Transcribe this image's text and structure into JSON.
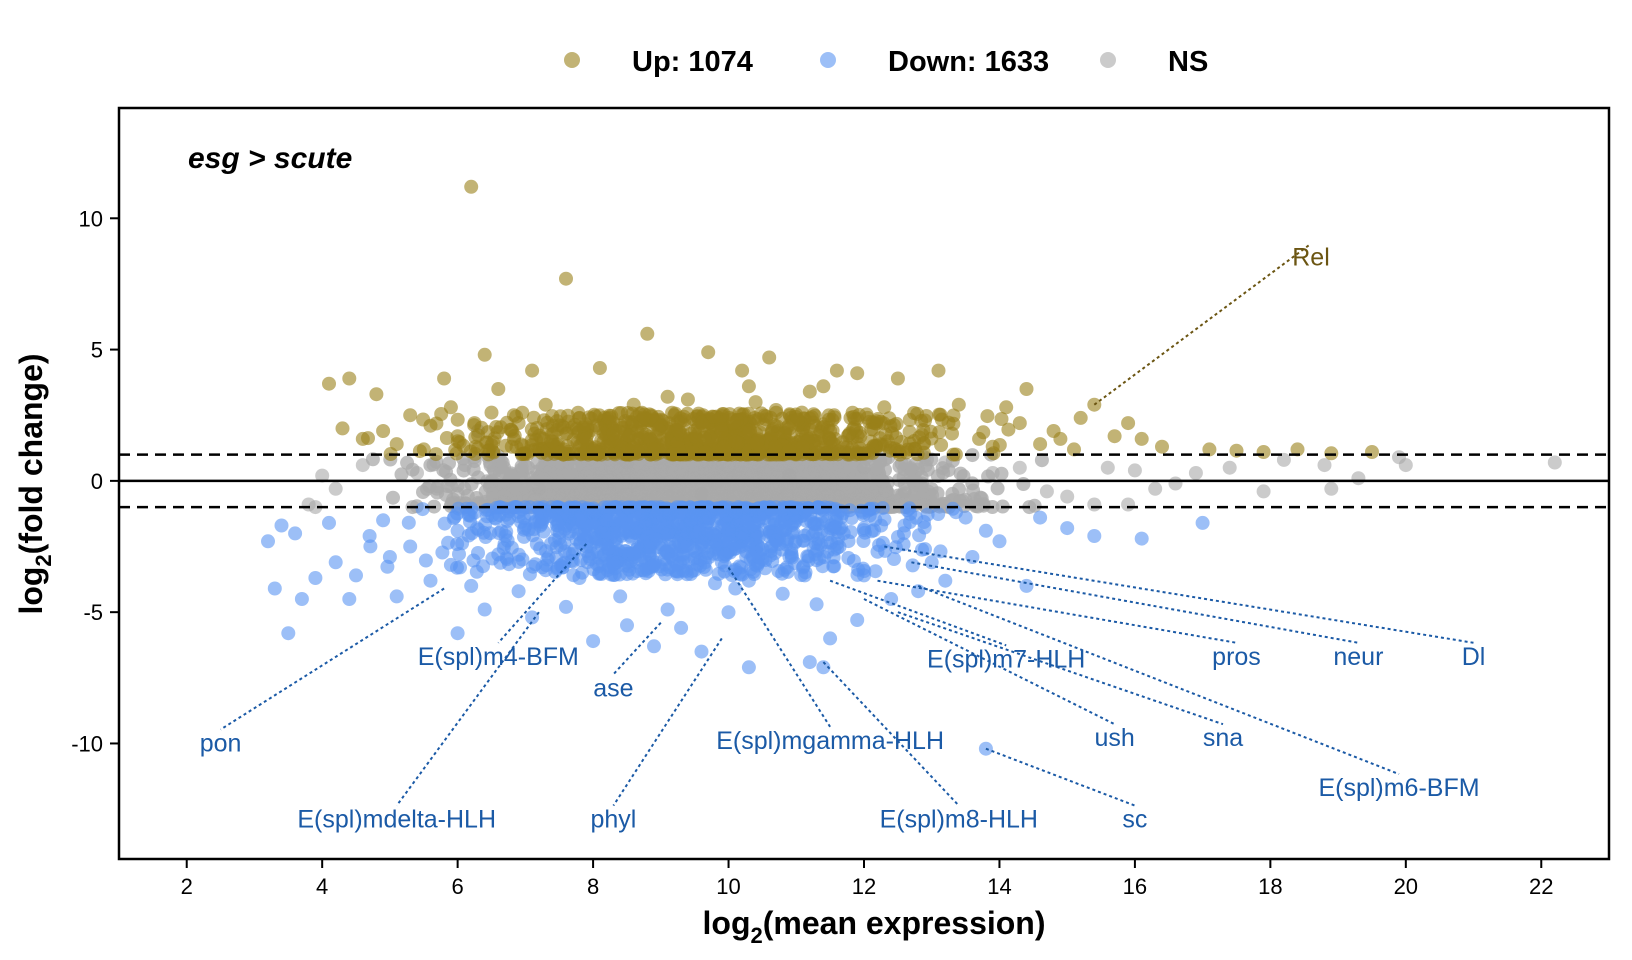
{
  "chart_data": {
    "type": "scatter",
    "panel_label": "esg > scute",
    "xlabel": {
      "main": "log",
      "sub": "2",
      "rest": "(mean expression)"
    },
    "ylabel": {
      "main": "log",
      "sub": "2",
      "rest": "(fold change)"
    },
    "xlim": [
      1,
      23
    ],
    "ylim": [
      -14.4,
      14.2
    ],
    "xticks": [
      2,
      4,
      6,
      8,
      10,
      12,
      14,
      16,
      18,
      20,
      22
    ],
    "yticks": [
      -10,
      -5,
      0,
      5,
      10
    ],
    "hlines": {
      "solid": [
        0
      ],
      "dashed": [
        1,
        -1
      ]
    },
    "colors": {
      "up": "#9a8019",
      "down": "#5a94f2",
      "ns": "#a9a9a9",
      "up_label": "#6b5512",
      "down_label": "#1b5aa6"
    },
    "legend": {
      "position": "top",
      "items": [
        {
          "key": "up",
          "label": "Up: 1074"
        },
        {
          "key": "down",
          "label": "Down: 1633"
        },
        {
          "key": "ns",
          "label": "NS"
        }
      ]
    },
    "series": [
      {
        "name": "Up: 1074",
        "key": "up",
        "points": [
          [
            6.2,
            11.2
          ],
          [
            7.6,
            7.7
          ],
          [
            8.8,
            5.6
          ],
          [
            6.4,
            4.8
          ],
          [
            9.7,
            4.9
          ],
          [
            10.6,
            4.7
          ],
          [
            7.1,
            4.2
          ],
          [
            10.2,
            4.2
          ],
          [
            11.6,
            4.2
          ],
          [
            11.9,
            4.1
          ],
          [
            8.1,
            4.3
          ],
          [
            13.1,
            4.2
          ],
          [
            4.1,
            3.7
          ],
          [
            4.4,
            3.9
          ],
          [
            5.8,
            3.9
          ],
          [
            12.5,
            3.9
          ],
          [
            14.4,
            3.5
          ],
          [
            15.4,
            2.9
          ],
          [
            4.8,
            3.3
          ],
          [
            6.6,
            3.5
          ],
          [
            7.3,
            2.9
          ],
          [
            9.1,
            3.2
          ],
          [
            10.3,
            3.6
          ],
          [
            11.2,
            3.4
          ],
          [
            13.4,
            2.9
          ],
          [
            14.1,
            2.8
          ],
          [
            15.2,
            2.4
          ],
          [
            15.9,
            2.2
          ],
          [
            16.1,
            1.6
          ],
          [
            17.1,
            1.2
          ],
          [
            17.9,
            1.1
          ],
          [
            18.4,
            1.2
          ],
          [
            19.5,
            1.1
          ],
          [
            16.4,
            1.3
          ],
          [
            15.7,
            1.7
          ],
          [
            14.8,
            1.9
          ],
          [
            12.3,
            2.8
          ],
          [
            11.4,
            3.6
          ],
          [
            8.6,
            2.9
          ],
          [
            9.4,
            3.1
          ],
          [
            5.3,
            2.5
          ],
          [
            5.9,
            2.8
          ],
          [
            6.9,
            2.2
          ],
          [
            7.8,
            2.4
          ],
          [
            4.3,
            2.0
          ],
          [
            4.6,
            1.6
          ],
          [
            12.9,
            2.3
          ],
          [
            13.7,
            1.6
          ],
          [
            10.9,
            2.0
          ],
          [
            9.9,
            1.9
          ],
          [
            8.3,
            1.8
          ],
          [
            7.4,
            1.5
          ],
          [
            5.1,
            1.4
          ],
          [
            5.6,
            2.1
          ],
          [
            11.8,
            2.4
          ],
          [
            13.9,
            1.3
          ],
          [
            14.6,
            1.4
          ],
          [
            15.1,
            1.2
          ],
          [
            17.5,
            1.15
          ],
          [
            18.9,
            1.05
          ],
          [
            9.2,
            2.5
          ],
          [
            10.7,
            2.7
          ],
          [
            6.0,
            1.7
          ],
          [
            12.1,
            1.5
          ],
          [
            4.9,
            1.9
          ],
          [
            6.8,
            1.3
          ],
          [
            8.9,
            1.2
          ],
          [
            11.1,
            1.3
          ],
          [
            13.3,
            1.8
          ],
          [
            14.9,
            1.6
          ],
          [
            10.1,
            1.5
          ],
          [
            7.9,
            1.6
          ],
          [
            5.5,
            1.2
          ],
          [
            12.7,
            1.2
          ],
          [
            9.6,
            2.2
          ],
          [
            6.5,
            2.6
          ],
          [
            11.5,
            1.9
          ],
          [
            14.3,
            2.2
          ],
          [
            8.4,
            2.1
          ],
          [
            10.4,
            3.0
          ]
        ]
      },
      {
        "name": "Down: 1633",
        "key": "down",
        "points": [
          [
            13.8,
            -10.2
          ],
          [
            11.4,
            -7.1
          ],
          [
            11.2,
            -6.9
          ],
          [
            10.3,
            -7.1
          ],
          [
            9.6,
            -6.5
          ],
          [
            8.0,
            -6.1
          ],
          [
            6.0,
            -5.8
          ],
          [
            3.5,
            -5.8
          ],
          [
            3.3,
            -4.1
          ],
          [
            3.7,
            -4.5
          ],
          [
            4.4,
            -4.5
          ],
          [
            3.9,
            -3.7
          ],
          [
            3.2,
            -2.3
          ],
          [
            3.4,
            -1.7
          ],
          [
            3.6,
            -2.0
          ],
          [
            4.2,
            -3.1
          ],
          [
            5.1,
            -4.4
          ],
          [
            6.2,
            -4.0
          ],
          [
            7.1,
            -5.2
          ],
          [
            7.6,
            -4.8
          ],
          [
            8.5,
            -5.5
          ],
          [
            8.9,
            -6.3
          ],
          [
            9.3,
            -5.6
          ],
          [
            10.0,
            -5.0
          ],
          [
            10.8,
            -4.3
          ],
          [
            11.5,
            -6.0
          ],
          [
            11.9,
            -5.3
          ],
          [
            12.4,
            -4.5
          ],
          [
            12.8,
            -4.2
          ],
          [
            13.2,
            -3.8
          ],
          [
            13.6,
            -2.9
          ],
          [
            14.0,
            -2.3
          ],
          [
            14.4,
            -4.0
          ],
          [
            15.4,
            -2.1
          ],
          [
            16.1,
            -2.2
          ],
          [
            17.0,
            -1.6
          ],
          [
            15.0,
            -1.8
          ],
          [
            13.0,
            -3.1
          ],
          [
            12.2,
            -2.7
          ],
          [
            11.1,
            -3.3
          ],
          [
            10.5,
            -2.6
          ],
          [
            9.8,
            -3.9
          ],
          [
            8.7,
            -3.0
          ],
          [
            7.9,
            -2.5
          ],
          [
            7.3,
            -3.4
          ],
          [
            6.6,
            -2.8
          ],
          [
            5.9,
            -3.2
          ],
          [
            5.3,
            -2.5
          ],
          [
            4.7,
            -2.1
          ],
          [
            4.1,
            -1.6
          ],
          [
            4.9,
            -1.5
          ],
          [
            6.0,
            -1.9
          ],
          [
            7.0,
            -1.7
          ],
          [
            8.2,
            -1.5
          ],
          [
            9.4,
            -2.0
          ],
          [
            10.6,
            -1.6
          ],
          [
            11.7,
            -2.0
          ],
          [
            12.6,
            -1.7
          ],
          [
            13.5,
            -1.4
          ],
          [
            14.6,
            -1.4
          ],
          [
            5.6,
            -3.8
          ],
          [
            6.9,
            -4.2
          ],
          [
            8.4,
            -4.4
          ],
          [
            9.1,
            -4.9
          ],
          [
            10.1,
            -4.1
          ],
          [
            11.3,
            -4.7
          ],
          [
            12.0,
            -3.6
          ],
          [
            12.9,
            -2.6
          ],
          [
            13.8,
            -1.9
          ],
          [
            4.5,
            -3.6
          ],
          [
            5.0,
            -2.9
          ],
          [
            7.5,
            -2.2
          ],
          [
            8.8,
            -2.5
          ],
          [
            9.9,
            -3.1
          ],
          [
            10.9,
            -2.9
          ],
          [
            11.6,
            -2.4
          ],
          [
            6.4,
            -4.9
          ],
          [
            7.8,
            -3.7
          ],
          [
            9.5,
            -3.4
          ],
          [
            10.3,
            -3.8
          ]
        ]
      },
      {
        "name": "NS",
        "key": "ns",
        "points": [
          [
            22.2,
            0.7
          ],
          [
            20.0,
            0.6
          ],
          [
            19.9,
            0.9
          ],
          [
            18.8,
            0.6
          ],
          [
            18.2,
            0.8
          ],
          [
            17.4,
            0.5
          ],
          [
            16.9,
            0.3
          ],
          [
            16.6,
            -0.1
          ],
          [
            16.3,
            -0.3
          ],
          [
            17.9,
            -0.4
          ],
          [
            18.9,
            -0.3
          ],
          [
            19.3,
            0.1
          ],
          [
            15.9,
            -0.9
          ],
          [
            15.4,
            -0.9
          ],
          [
            15.0,
            -0.6
          ],
          [
            14.7,
            -0.4
          ],
          [
            14.3,
            0.5
          ],
          [
            13.9,
            0.3
          ],
          [
            15.6,
            0.5
          ],
          [
            16.0,
            0.4
          ],
          [
            4.0,
            0.2
          ],
          [
            4.2,
            -0.3
          ],
          [
            3.9,
            -1.0
          ],
          [
            3.8,
            -0.9
          ],
          [
            4.6,
            0.6
          ],
          [
            6.3,
            1.9
          ],
          [
            6.0,
            -0.5
          ],
          [
            8.5,
            0.7
          ],
          [
            10.9,
            0.2
          ],
          [
            12.6,
            -0.4
          ],
          [
            13.2,
            0.7
          ],
          [
            12.0,
            0.5
          ],
          [
            9.6,
            -0.5
          ],
          [
            7.2,
            -0.3
          ],
          [
            5.4,
            0.3
          ]
        ]
      }
    ],
    "dense_bands": [
      {
        "key": "up",
        "x_from": 4.0,
        "x_to": 15.2,
        "y_from": 1.0,
        "y_to": 2.6,
        "count": 900
      },
      {
        "key": "down",
        "x_from": 3.9,
        "x_to": 14.6,
        "y_from": -1.0,
        "y_to": -3.6,
        "count": 1100
      },
      {
        "key": "ns",
        "x_from": 3.9,
        "x_to": 15.5,
        "y_from": -1.0,
        "y_to": 1.0,
        "count": 2200
      }
    ],
    "annotations": [
      {
        "label": "Rel",
        "group": "up",
        "point": [
          15.4,
          2.9
        ],
        "text_pos": [
          18.6,
          8.5
        ],
        "anchor": "middle"
      },
      {
        "label": "pon",
        "group": "down",
        "point": [
          5.8,
          -4.1
        ],
        "text_pos": [
          2.5,
          -10.0
        ],
        "anchor": "middle"
      },
      {
        "label": "E(spl)m4-BFM",
        "group": "down",
        "point": [
          7.9,
          -2.4
        ],
        "text_pos": [
          6.6,
          -6.7
        ],
        "anchor": "middle"
      },
      {
        "label": "ase",
        "group": "down",
        "point": [
          9.0,
          -5.4
        ],
        "text_pos": [
          8.3,
          -7.9
        ],
        "anchor": "middle"
      },
      {
        "label": "E(spl)mdelta-HLH",
        "group": "down",
        "point": [
          7.2,
          -5.0
        ],
        "text_pos": [
          5.1,
          -12.9
        ],
        "anchor": "middle"
      },
      {
        "label": "phyl",
        "group": "down",
        "point": [
          9.9,
          -6.0
        ],
        "text_pos": [
          8.3,
          -12.9
        ],
        "anchor": "middle"
      },
      {
        "label": "E(spl)mgamma-HLH",
        "group": "down",
        "point": [
          10.0,
          -3.3
        ],
        "text_pos": [
          11.5,
          -9.9
        ],
        "anchor": "middle"
      },
      {
        "label": "E(spl)m8-HLH",
        "group": "down",
        "point": [
          11.4,
          -6.9
        ],
        "text_pos": [
          13.4,
          -12.9
        ],
        "anchor": "middle"
      },
      {
        "label": "sc",
        "group": "down",
        "point": [
          13.8,
          -10.2
        ],
        "text_pos": [
          16.0,
          -12.9
        ],
        "anchor": "middle"
      },
      {
        "label": "E(spl)m7-HLH",
        "group": "down",
        "point": [
          11.5,
          -3.8
        ],
        "text_pos": [
          14.1,
          -6.8
        ],
        "anchor": "middle"
      },
      {
        "label": "ush",
        "group": "down",
        "point": [
          12.0,
          -4.5
        ],
        "text_pos": [
          15.7,
          -9.8
        ],
        "anchor": "middle"
      },
      {
        "label": "sna",
        "group": "down",
        "point": [
          12.5,
          -5.0
        ],
        "text_pos": [
          17.3,
          -9.8
        ],
        "anchor": "middle"
      },
      {
        "label": "E(spl)m6-BFM",
        "group": "down",
        "point": [
          12.8,
          -4.0
        ],
        "text_pos": [
          19.9,
          -11.7
        ],
        "anchor": "middle"
      },
      {
        "label": "pros",
        "group": "down",
        "point": [
          12.2,
          -3.8
        ],
        "text_pos": [
          17.5,
          -6.7
        ],
        "anchor": "middle"
      },
      {
        "label": "neur",
        "group": "down",
        "point": [
          12.7,
          -3.1
        ],
        "text_pos": [
          19.3,
          -6.7
        ],
        "anchor": "middle"
      },
      {
        "label": "Dl",
        "group": "down",
        "point": [
          12.3,
          -2.5
        ],
        "text_pos": [
          21.0,
          -6.7
        ],
        "anchor": "middle"
      }
    ]
  }
}
